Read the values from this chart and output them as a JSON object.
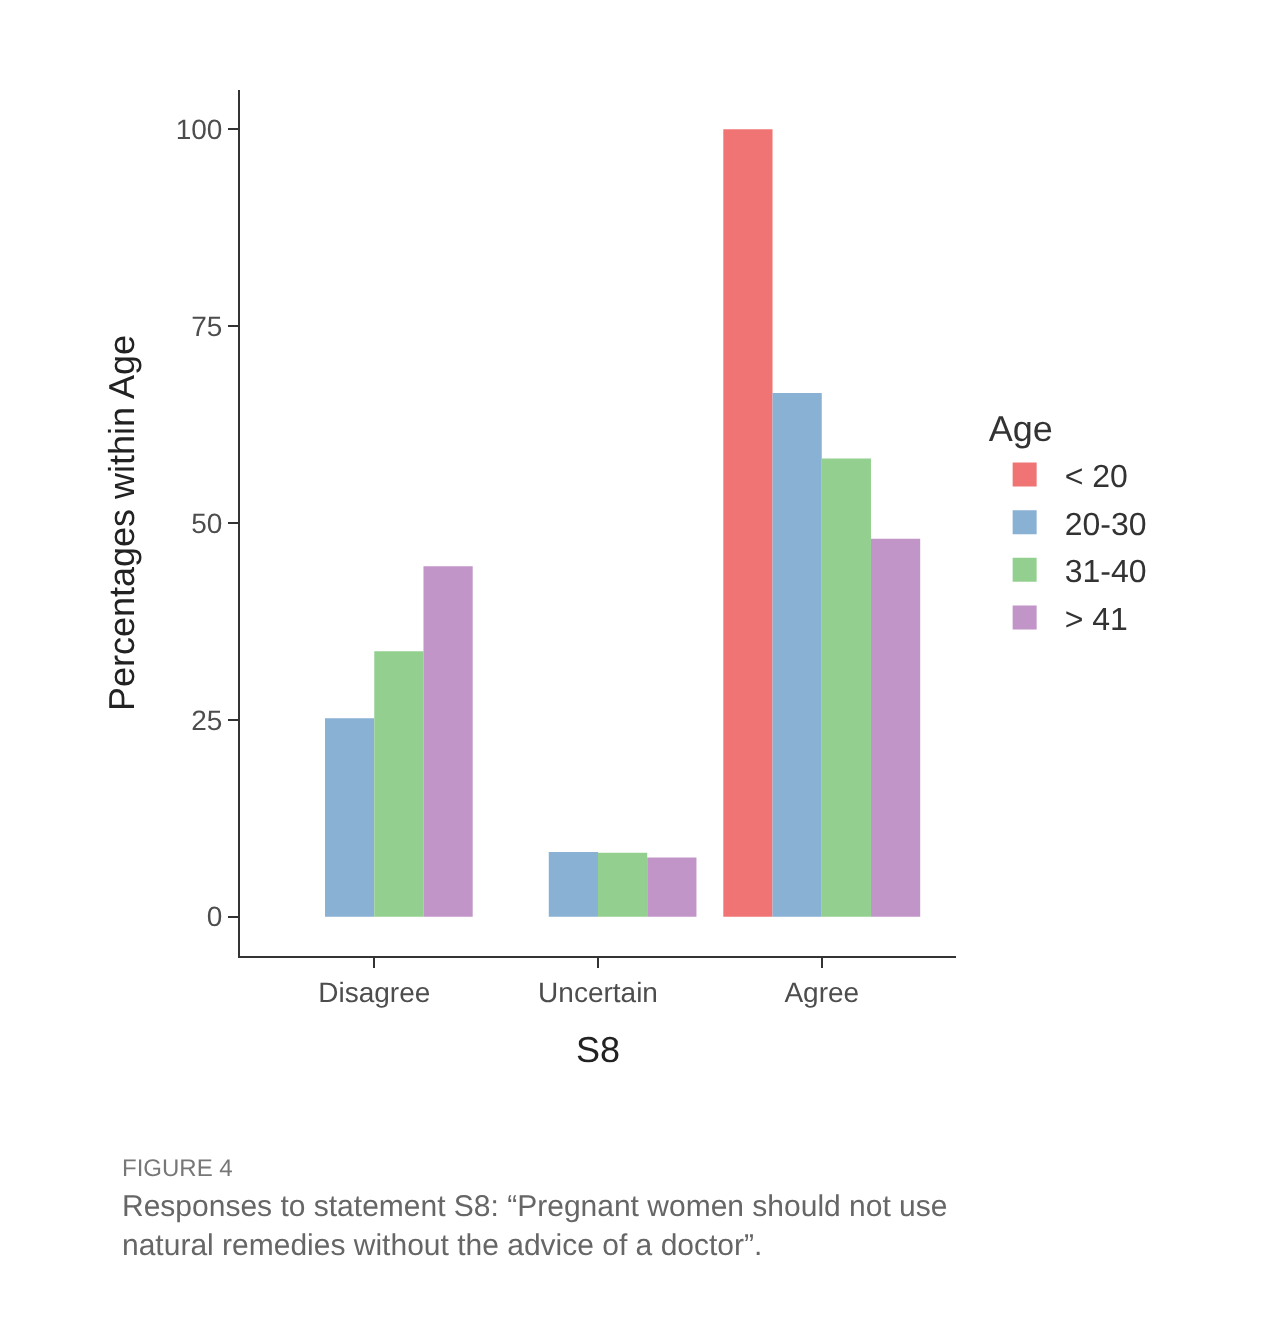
{
  "chart_data": {
    "type": "bar",
    "xlabel": "S8",
    "ylabel": "Percentages within Age",
    "legend_title": "Age",
    "categories": [
      "Disagree",
      "Uncertain",
      "Agree"
    ],
    "series": [
      {
        "name": "< 20",
        "color": "#f07474",
        "values": [
          null,
          null,
          100
        ]
      },
      {
        "name": "20-30",
        "color": "#88b1d4",
        "values": [
          25.2,
          8.2,
          66.5
        ]
      },
      {
        "name": "31-40",
        "color": "#93d08f",
        "values": [
          33.7,
          8.1,
          58.2
        ]
      },
      {
        "name": "> 41",
        "color": "#c295c8",
        "values": [
          44.5,
          7.5,
          48.0
        ]
      }
    ],
    "ylim": [
      -5,
      105
    ],
    "yticks": [
      0,
      25,
      50,
      75,
      100
    ],
    "legend": "right",
    "annotations": [
      "FIGURE 4",
      "Responses to statement S8: “Pregnant women should not use natural remedies without the advice of a doctor”."
    ]
  }
}
